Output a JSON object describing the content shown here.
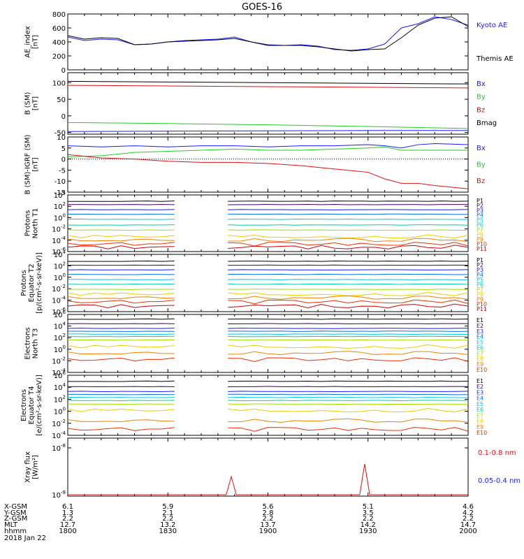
{
  "title": "GOES-16",
  "time_ticks": [
    "1800",
    "1830",
    "1900",
    "1930",
    "2000"
  ],
  "ephemeris": {
    "labels": [
      "X-GSM",
      "Y-GSM",
      "Z-GSM",
      "MLT",
      "hhmm"
    ],
    "date": "2018 Jan 22",
    "columns": [
      [
        "6.1",
        "1.3",
        "2.2",
        "12.7",
        "1800"
      ],
      [
        "5.9",
        "2.1",
        "2.2",
        "13.2",
        "1830"
      ],
      [
        "5.6",
        "2.8",
        "2.2",
        "13.7",
        "1900"
      ],
      [
        "5.1",
        "3.5",
        "2.2",
        "14.2",
        "1930"
      ],
      [
        "4.6",
        "4.2",
        "2.2",
        "14.7",
        "2000"
      ]
    ]
  },
  "colors": {
    "black": "#000000",
    "blue": "#1a1aff",
    "green": "#22cc22",
    "red": "#dd1111",
    "p_palette": [
      "#000000",
      "#3d0066",
      "#1a1aff",
      "#0070e0",
      "#00c8e8",
      "#00d2a0",
      "#9fe000",
      "#e8d000",
      "#f08000",
      "#e83000",
      "#cc0000"
    ]
  },
  "chart_data": [
    {
      "type": "line",
      "panel": "ae",
      "ylabel": "AE_index\n[nT]",
      "yticks": [
        "800",
        "600",
        "400",
        "200",
        "0"
      ],
      "ylim": [
        0,
        800
      ],
      "x_minutes": [
        0,
        5,
        10,
        15,
        20,
        25,
        30,
        35,
        40,
        45,
        50,
        55,
        60,
        65,
        70,
        75,
        80,
        85,
        90,
        95,
        100,
        105,
        110,
        115,
        120
      ],
      "series": [
        {
          "name": "Kyoto AE",
          "color": "blue",
          "values": [
            470,
            420,
            440,
            430,
            360,
            370,
            400,
            420,
            430,
            440,
            470,
            400,
            360,
            350,
            360,
            340,
            290,
            280,
            300,
            370,
            600,
            660,
            760,
            720,
            640
          ]
        },
        {
          "name": "Themis AE",
          "color": "black",
          "values": [
            490,
            440,
            460,
            450,
            360,
            370,
            400,
            410,
            420,
            430,
            450,
            400,
            350,
            350,
            350,
            330,
            300,
            270,
            290,
            300,
            460,
            640,
            740,
            760,
            620
          ]
        }
      ]
    },
    {
      "type": "line",
      "panel": "bsm",
      "ylabel": "B (SM)\n[nT]",
      "yticks": [
        "100",
        "50",
        "0",
        "-50"
      ],
      "ylim": [
        -55,
        130
      ],
      "x_minutes": [
        0,
        30,
        60,
        90,
        120
      ],
      "series": [
        {
          "name": "Bx",
          "color": "blue",
          "values": [
            -47,
            -46,
            -45,
            -44,
            -44
          ]
        },
        {
          "name": "By",
          "color": "green",
          "values": [
            -20,
            -23,
            -27,
            -32,
            -38
          ]
        },
        {
          "name": "Bz",
          "color": "red",
          "values": [
            92,
            90,
            88,
            86,
            84
          ]
        },
        {
          "name": "Bmag",
          "color": "black",
          "values": [
            104,
            102,
            100,
            98,
            96
          ]
        }
      ]
    },
    {
      "type": "line",
      "panel": "digrf",
      "ylabel": "B (SM)-IGRF (SM)\n[nT]",
      "yticks": [
        "10",
        "5",
        "0",
        "-5",
        "-10",
        "-15"
      ],
      "ylim": [
        -15,
        10
      ],
      "x_minutes": [
        0,
        10,
        20,
        30,
        40,
        50,
        60,
        70,
        80,
        90,
        95,
        100,
        105,
        110,
        120
      ],
      "series": [
        {
          "name": "Bx",
          "color": "blue",
          "values": [
            6,
            5.5,
            6,
            5.5,
            6,
            6,
            5.5,
            6,
            6,
            6.5,
            6,
            5,
            6.5,
            7,
            6.5
          ]
        },
        {
          "name": "By",
          "color": "green",
          "values": [
            1,
            1.5,
            3,
            3.5,
            4,
            4.5,
            4,
            4,
            4.5,
            5,
            5.5,
            4,
            4,
            4,
            4
          ]
        },
        {
          "name": "Bz",
          "color": "red",
          "values": [
            2,
            0.5,
            0,
            -1,
            -1.5,
            -1.5,
            -2,
            -3,
            -4.5,
            -6,
            -9,
            -11,
            -11,
            -12,
            -13.5
          ]
        }
      ]
    },
    {
      "type": "line",
      "panel": "p_t1",
      "ylabel": "Protons\nNorth T1",
      "yticks": [
        "10^4",
        "10^2",
        "10^0",
        "10^-2",
        "10^-4",
        "10^-6"
      ],
      "log_ylim": [
        -6,
        4
      ],
      "gap_minutes": [
        34,
        48
      ],
      "series": [
        {
          "name": "P1",
          "log_value": 2.9
        },
        {
          "name": "P2",
          "log_value": 2.3
        },
        {
          "name": "P3",
          "log_value": 1.4
        },
        {
          "name": "P4",
          "log_value": 0.6
        },
        {
          "name": "P5",
          "log_value": -0.3
        },
        {
          "name": "P6",
          "log_value": -1.3
        },
        {
          "name": "P7",
          "log_value": -2.2
        },
        {
          "name": "P8",
          "log_value": -3.3
        },
        {
          "name": "P9",
          "log_value": -3.9
        },
        {
          "name": "P10",
          "log_value": -4.7
        },
        {
          "name": "P11",
          "log_value": -5.2
        }
      ]
    },
    {
      "type": "line",
      "panel": "p_t2",
      "ylabel": "Protons\nEquator T2\n[p/(cm²-s-sr-keV)]",
      "yticks": [
        "10^4",
        "10^2",
        "10^0",
        "10^-2",
        "10^-4",
        "10^-6"
      ],
      "log_ylim": [
        -6,
        4
      ],
      "gap_minutes": [
        34,
        48
      ],
      "series": [
        {
          "name": "P1",
          "log_value": 2.8
        },
        {
          "name": "P2",
          "log_value": 2.1
        },
        {
          "name": "P3",
          "log_value": 1.3
        },
        {
          "name": "P4",
          "log_value": 0.5
        },
        {
          "name": "P5",
          "log_value": -0.4
        },
        {
          "name": "P6",
          "log_value": -1.2
        },
        {
          "name": "P7",
          "log_value": -2.1
        },
        {
          "name": "P8",
          "log_value": -2.9
        },
        {
          "name": "P9",
          "log_value": -3.5
        },
        {
          "name": "P10",
          "log_value": -4.3
        },
        {
          "name": "P11",
          "log_value": -5.0
        }
      ]
    },
    {
      "type": "line",
      "panel": "e_t3",
      "ylabel": "Electrons\nNorth T3",
      "yticks": [
        "10^6",
        "10^4",
        "10^2",
        "10^0",
        "10^-2",
        "10^-4"
      ],
      "log_ylim": [
        -4,
        6
      ],
      "gap_minutes": [
        34,
        48
      ],
      "series": [
        {
          "name": "E1",
          "log_value": 5.2
        },
        {
          "name": "E2",
          "log_value": 4.4
        },
        {
          "name": "E3",
          "log_value": 3.6
        },
        {
          "name": "E4",
          "log_value": 3.1
        },
        {
          "name": "E5",
          "log_value": 2.6
        },
        {
          "name": "E6",
          "log_value": 2.2
        },
        {
          "name": "E7",
          "log_value": 1.6
        },
        {
          "name": "E8",
          "log_value": 0.5
        },
        {
          "name": "E9",
          "log_value": -0.6
        },
        {
          "name": "E10",
          "log_value": -1.8
        }
      ]
    },
    {
      "type": "line",
      "panel": "e_t4",
      "ylabel": "Electrons\nEquator T4\n[e/(cm²-s-sr-keV)]",
      "yticks": [
        "10^6",
        "10^4",
        "10^2",
        "10^0",
        "10^-2",
        "10^-4"
      ],
      "log_ylim": [
        -4,
        6
      ],
      "gap_minutes": [
        34,
        48
      ],
      "series": [
        {
          "name": "E1",
          "log_value": 5.0
        },
        {
          "name": "E2",
          "log_value": 4.1
        },
        {
          "name": "E3",
          "log_value": 3.3
        },
        {
          "name": "E4",
          "log_value": 2.8
        },
        {
          "name": "E5",
          "log_value": 2.3
        },
        {
          "name": "E6",
          "log_value": 1.8
        },
        {
          "name": "E7",
          "log_value": 1.2
        },
        {
          "name": "E8",
          "log_value": 0.2
        },
        {
          "name": "E9",
          "log_value": -1.5
        },
        {
          "name": "E10",
          "log_value": -3.0
        }
      ]
    },
    {
      "type": "line",
      "panel": "xray",
      "ylabel": "Xray flux\n[W/m²]",
      "yticks": [
        "10^-8",
        "10^-9"
      ],
      "series": [
        {
          "name": "0.1-0.8 nm",
          "color": "red",
          "spikes_minutes": [
            49,
            89
          ]
        },
        {
          "name": "0.05-0.4 nm",
          "color": "blue"
        }
      ]
    }
  ]
}
